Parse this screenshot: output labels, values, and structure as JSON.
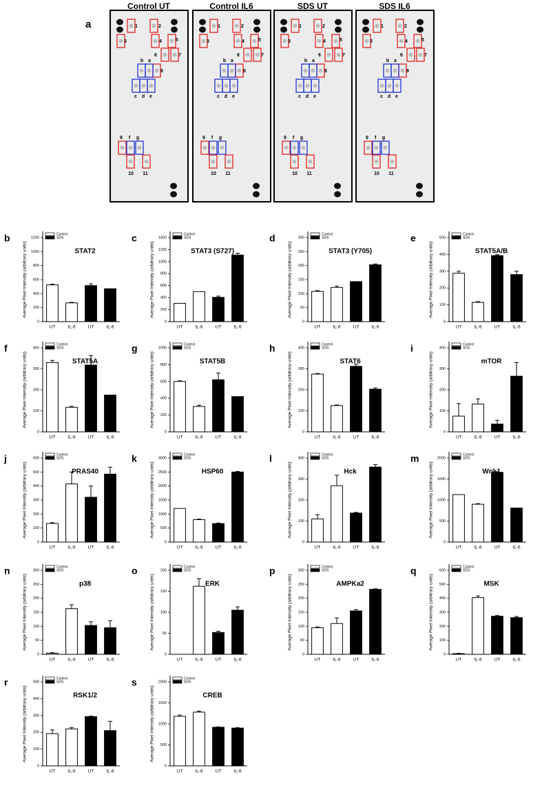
{
  "figure_a": {
    "panel": "a",
    "blots": [
      {
        "title": "Control UT"
      },
      {
        "title": "Control IL6"
      },
      {
        "title": "SDS UT"
      },
      {
        "title": "SDS IL6"
      }
    ],
    "spot_labels": [
      "1",
      "2",
      "3",
      "4",
      "5",
      "6",
      "7",
      "8",
      "9",
      "10",
      "11",
      "a",
      "b",
      "c",
      "d",
      "e",
      "f",
      "g"
    ]
  },
  "chart_data": [
    {
      "type": "bar",
      "panel": "b",
      "title": "STAT2",
      "ylabel": "Average Pixel Intensity (arbitrary units)",
      "categories": [
        "UT",
        "IL-6",
        "UT",
        "IL-6"
      ],
      "ylim": [
        0,
        1200
      ],
      "yticks": [
        0,
        200,
        400,
        600,
        800,
        1000,
        1200
      ],
      "series": [
        {
          "name": "Control",
          "color": "#ffffff",
          "values": [
            525,
            268,
            null,
            null
          ],
          "errors": [
            10,
            8,
            null,
            null
          ]
        },
        {
          "name": "SDS",
          "color": "#000000",
          "values": [
            null,
            null,
            515,
            470
          ],
          "errors": [
            null,
            null,
            25,
            0
          ]
        }
      ]
    },
    {
      "type": "bar",
      "panel": "c",
      "title": "STAT3 (S727)",
      "ylabel": "Average Pixel Intensity (arbitrary units)",
      "categories": [
        "UT",
        "IL-6",
        "UT",
        "IL-6"
      ],
      "ylim": [
        0,
        1400
      ],
      "yticks": [
        0,
        200,
        400,
        600,
        800,
        1000,
        1200,
        1400
      ],
      "series": [
        {
          "name": "Control",
          "color": "#ffffff",
          "values": [
            305,
            500,
            null,
            null
          ],
          "errors": [
            0,
            0,
            null,
            null
          ]
        },
        {
          "name": "SDS",
          "color": "#000000",
          "values": [
            null,
            null,
            405,
            1110
          ],
          "errors": [
            null,
            null,
            20,
            30
          ]
        }
      ]
    },
    {
      "type": "bar",
      "panel": "d",
      "title": "STAT3 (Y705)",
      "ylabel": "Average Pixel Intensity (arbitrary units)",
      "categories": [
        "UT",
        "IL-6",
        "UT",
        "IL-6"
      ],
      "ylim": [
        0,
        300
      ],
      "yticks": [
        0,
        50,
        100,
        150,
        200,
        250,
        300
      ],
      "series": [
        {
          "name": "Control",
          "color": "#ffffff",
          "values": [
            108,
            122,
            null,
            null
          ],
          "errors": [
            3,
            5,
            null,
            null
          ]
        },
        {
          "name": "SDS",
          "color": "#000000",
          "values": [
            null,
            null,
            143,
            203
          ],
          "errors": [
            null,
            null,
            0,
            3
          ]
        }
      ]
    },
    {
      "type": "bar",
      "panel": "e",
      "title": "STAT5A/B",
      "ylabel": "Average Pixel Intensity (arbitrary units)",
      "categories": [
        "UT",
        "IL-6",
        "UT",
        "IL-6"
      ],
      "ylim": [
        0,
        500
      ],
      "yticks": [
        0,
        100,
        200,
        300,
        400,
        500
      ],
      "series": [
        {
          "name": "Control",
          "color": "#ffffff",
          "values": [
            288,
            115,
            null,
            null
          ],
          "errors": [
            12,
            4,
            null,
            null
          ]
        },
        {
          "name": "SDS",
          "color": "#000000",
          "values": [
            null,
            null,
            393,
            280
          ],
          "errors": [
            null,
            null,
            5,
            20
          ]
        }
      ]
    },
    {
      "type": "bar",
      "panel": "f",
      "title": "STAT5A",
      "ylabel": "Average Pixel Intensity (arbitrary units)",
      "categories": [
        "UT",
        "IL-6",
        "UT",
        "IL-6"
      ],
      "ylim": [
        0,
        400
      ],
      "yticks": [
        0,
        100,
        200,
        300,
        400
      ],
      "series": [
        {
          "name": "Control",
          "color": "#ffffff",
          "values": [
            330,
            117,
            null,
            null
          ],
          "errors": [
            10,
            4,
            null,
            null
          ]
        },
        {
          "name": "SDS",
          "color": "#000000",
          "values": [
            null,
            null,
            318,
            175
          ],
          "errors": [
            null,
            null,
            45,
            0
          ]
        }
      ]
    },
    {
      "type": "bar",
      "panel": "g",
      "title": "STAT5B",
      "ylabel": "Average Pixel Intensity (arbitrary units)",
      "categories": [
        "UT",
        "IL-6",
        "UT",
        "IL-6"
      ],
      "ylim": [
        0,
        1000
      ],
      "yticks": [
        0,
        200,
        400,
        600,
        800,
        1000
      ],
      "series": [
        {
          "name": "Control",
          "color": "#ffffff",
          "values": [
            600,
            302,
            null,
            null
          ],
          "errors": [
            8,
            15,
            null,
            null
          ]
        },
        {
          "name": "SDS",
          "color": "#000000",
          "values": [
            null,
            null,
            620,
            420
          ],
          "errors": [
            null,
            null,
            80,
            0
          ]
        }
      ]
    },
    {
      "type": "bar",
      "panel": "h",
      "title": "STAT6",
      "ylabel": "Average Pixel Intensity (arbitrary units)",
      "categories": [
        "UT",
        "IL-6",
        "UT",
        "IL-6"
      ],
      "ylim": [
        0,
        400
      ],
      "yticks": [
        0,
        100,
        200,
        300,
        400
      ],
      "series": [
        {
          "name": "Control",
          "color": "#ffffff",
          "values": [
            275,
            125,
            null,
            null
          ],
          "errors": [
            3,
            3,
            null,
            null
          ]
        },
        {
          "name": "SDS",
          "color": "#000000",
          "values": [
            null,
            null,
            312,
            203
          ],
          "errors": [
            null,
            null,
            10,
            6
          ]
        }
      ]
    },
    {
      "type": "bar",
      "panel": "i",
      "title": "mTOR",
      "ylabel": "Average Pixel Intensity (arbitrary units)",
      "categories": [
        "UT",
        "IL-6",
        "UT",
        "IL-6"
      ],
      "ylim": [
        0,
        400
      ],
      "yticks": [
        0,
        100,
        200,
        300,
        400
      ],
      "series": [
        {
          "name": "Control",
          "color": "#ffffff",
          "values": [
            75,
            132,
            null,
            null
          ],
          "errors": [
            60,
            25,
            null,
            null
          ]
        },
        {
          "name": "SDS",
          "color": "#000000",
          "values": [
            null,
            null,
            37,
            265
          ],
          "errors": [
            null,
            null,
            18,
            65
          ]
        }
      ]
    },
    {
      "type": "bar",
      "panel": "j",
      "title": "PRAS40",
      "ylabel": "Average Pixel Intensity (arbitrary units)",
      "categories": [
        "UT",
        "IL-6",
        "UT",
        "IL-6"
      ],
      "ylim": [
        0,
        600
      ],
      "yticks": [
        0,
        100,
        200,
        300,
        400,
        500,
        600
      ],
      "series": [
        {
          "name": "Control",
          "color": "#ffffff",
          "values": [
            133,
            415,
            null,
            null
          ],
          "errors": [
            5,
            85,
            null,
            null
          ]
        },
        {
          "name": "SDS",
          "color": "#000000",
          "values": [
            null,
            null,
            320,
            485
          ],
          "errors": [
            null,
            null,
            80,
            50
          ]
        }
      ]
    },
    {
      "type": "bar",
      "panel": "k",
      "title": "HSP60",
      "ylabel": "Average Pixel Intensity (arbitrary units)",
      "categories": [
        "UT",
        "IL-6",
        "UT",
        "IL-6"
      ],
      "ylim": [
        0,
        3000
      ],
      "yticks": [
        0,
        500,
        1000,
        1500,
        2000,
        2500,
        3000
      ],
      "series": [
        {
          "name": "Control",
          "color": "#ffffff",
          "values": [
            1200,
            800,
            null,
            null
          ],
          "errors": [
            0,
            20,
            null,
            null
          ]
        },
        {
          "name": "SDS",
          "color": "#000000",
          "values": [
            null,
            null,
            660,
            2500
          ],
          "errors": [
            null,
            null,
            20,
            20
          ]
        }
      ]
    },
    {
      "type": "bar",
      "panel": "l",
      "title": "Hck",
      "ylabel": "Average Pixel Intensity (arbitrary units)",
      "categories": [
        "UT",
        "IL-6",
        "UT",
        "IL-6"
      ],
      "ylim": [
        0,
        400
      ],
      "yticks": [
        0,
        100,
        200,
        300,
        400
      ],
      "series": [
        {
          "name": "Control",
          "color": "#ffffff",
          "values": [
            110,
            268,
            null,
            null
          ],
          "errors": [
            20,
            50,
            null,
            null
          ]
        },
        {
          "name": "SDS",
          "color": "#000000",
          "values": [
            null,
            null,
            138,
            357
          ],
          "errors": [
            null,
            null,
            3,
            12
          ]
        }
      ]
    },
    {
      "type": "bar",
      "panel": "m",
      "title": "Wnk1",
      "ylabel": "Average Pixel Intensity (arbitrary units)",
      "categories": [
        "UT",
        "IL-6",
        "UT",
        "IL-6"
      ],
      "ylim": [
        0,
        2000
      ],
      "yticks": [
        0,
        500,
        1000,
        1500,
        2000
      ],
      "series": [
        {
          "name": "Control",
          "color": "#ffffff",
          "values": [
            1130,
            900,
            null,
            null
          ],
          "errors": [
            0,
            15,
            null,
            null
          ]
        },
        {
          "name": "SDS",
          "color": "#000000",
          "values": [
            null,
            null,
            1660,
            810
          ],
          "errors": [
            null,
            null,
            15,
            0
          ]
        }
      ]
    },
    {
      "type": "bar",
      "panel": "n",
      "title": "p38",
      "ylabel": "Average Pixel Intensity (arbitrary units)",
      "categories": [
        "UT",
        "IL-6",
        "UT",
        "IL-6"
      ],
      "ylim": [
        0,
        300
      ],
      "yticks": [
        0,
        50,
        100,
        150,
        200,
        250,
        300
      ],
      "series": [
        {
          "name": "Control",
          "color": "#ffffff",
          "values": [
            4,
            163,
            null,
            null
          ],
          "errors": [
            2,
            14,
            null,
            null
          ]
        },
        {
          "name": "SDS",
          "color": "#000000",
          "values": [
            null,
            null,
            103,
            95
          ],
          "errors": [
            null,
            null,
            13,
            25
          ]
        }
      ]
    },
    {
      "type": "bar",
      "panel": "o",
      "title": "ERK",
      "ylabel": "Average Pixel Intensity (arbitrary units)",
      "categories": [
        "UT",
        "IL-6",
        "UT",
        "IL-6"
      ],
      "ylim": [
        0,
        200
      ],
      "yticks": [
        0,
        50,
        100,
        150,
        200
      ],
      "series": [
        {
          "name": "Control",
          "color": "#ffffff",
          "values": [
            0,
            162,
            null,
            null
          ],
          "errors": [
            0,
            18,
            null,
            null
          ]
        },
        {
          "name": "SDS",
          "color": "#000000",
          "values": [
            null,
            null,
            52,
            105
          ],
          "errors": [
            null,
            null,
            3,
            8
          ]
        }
      ]
    },
    {
      "type": "bar",
      "panel": "p",
      "title": "AMPKa2",
      "ylabel": "Average Pixel Intensity (arbitrary units)",
      "categories": [
        "UT",
        "IL-6",
        "UT",
        "IL-6"
      ],
      "ylim": [
        0,
        300
      ],
      "yticks": [
        0,
        50,
        100,
        150,
        200,
        250,
        300
      ],
      "series": [
        {
          "name": "Control",
          "color": "#ffffff",
          "values": [
            95,
            110,
            null,
            null
          ],
          "errors": [
            3,
            20,
            null,
            null
          ]
        },
        {
          "name": "SDS",
          "color": "#000000",
          "values": [
            null,
            null,
            155,
            232
          ],
          "errors": [
            null,
            null,
            5,
            2
          ]
        }
      ]
    },
    {
      "type": "bar",
      "panel": "q",
      "title": "MSK",
      "ylabel": "Average Pixel Intensity (arbitrary units)",
      "categories": [
        "UT",
        "IL-6",
        "UT",
        "IL-6"
      ],
      "ylim": [
        0,
        600
      ],
      "yticks": [
        0,
        100,
        200,
        300,
        400,
        500,
        600
      ],
      "series": [
        {
          "name": "Control",
          "color": "#ffffff",
          "values": [
            5,
            405,
            null,
            null
          ],
          "errors": [
            2,
            12,
            null,
            null
          ]
        },
        {
          "name": "SDS",
          "color": "#000000",
          "values": [
            null,
            null,
            272,
            262
          ],
          "errors": [
            null,
            null,
            5,
            8
          ]
        }
      ]
    },
    {
      "type": "bar",
      "panel": "r",
      "title": "RSK1/2",
      "ylabel": "Average Pixel Intensity (arbitrary units)",
      "categories": [
        "UT",
        "IL-6",
        "UT",
        "IL-6"
      ],
      "ylim": [
        0,
        500
      ],
      "yticks": [
        0,
        100,
        200,
        300,
        400,
        500
      ],
      "series": [
        {
          "name": "Control",
          "color": "#ffffff",
          "values": [
            192,
            220,
            null,
            null
          ],
          "errors": [
            22,
            8,
            null,
            null
          ]
        },
        {
          "name": "SDS",
          "color": "#000000",
          "values": [
            null,
            null,
            293,
            210
          ],
          "errors": [
            null,
            null,
            3,
            55
          ]
        }
      ]
    },
    {
      "type": "bar",
      "panel": "s",
      "title": "CREB",
      "ylabel": "Average Pixel Intensity (arbitrary units)",
      "categories": [
        "UT",
        "IL-6",
        "UT",
        "IL-6"
      ],
      "ylim": [
        0,
        2000
      ],
      "yticks": [
        0,
        500,
        1000,
        1500,
        2000
      ],
      "series": [
        {
          "name": "Control",
          "color": "#ffffff",
          "values": [
            1180,
            1280,
            null,
            null
          ],
          "errors": [
            30,
            25,
            null,
            null
          ]
        },
        {
          "name": "SDS",
          "color": "#000000",
          "values": [
            null,
            null,
            920,
            900
          ],
          "errors": [
            null,
            null,
            8,
            10
          ]
        }
      ]
    }
  ]
}
